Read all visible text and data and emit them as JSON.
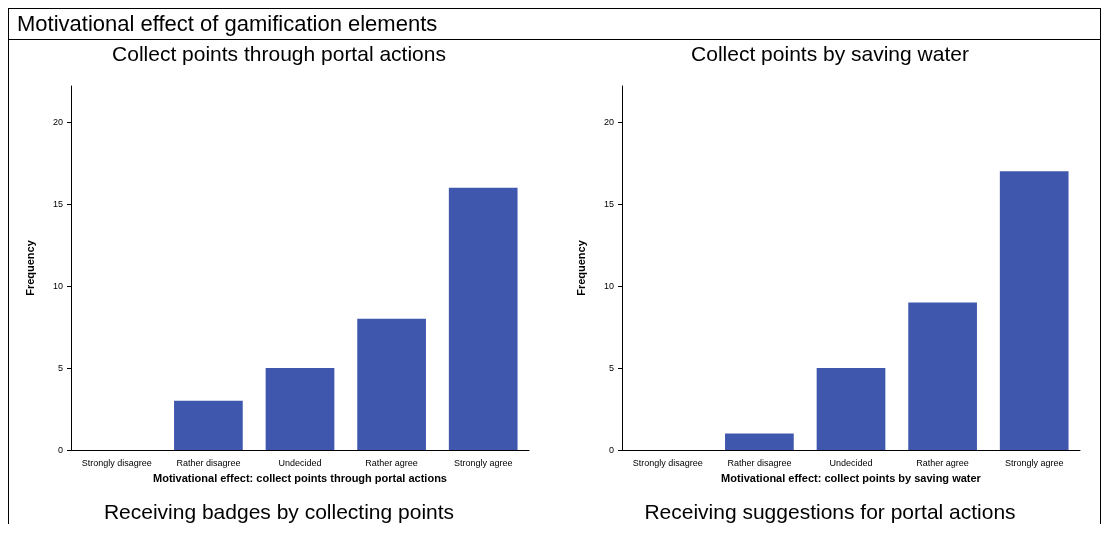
{
  "chart_data": [
    {
      "type": "bar",
      "title": "Collect points through portal actions",
      "xlabel": "Motivational effect: collect points through portal actions",
      "ylabel": "Frequency",
      "categories": [
        "Strongly disagree",
        "Rather disagree",
        "Undecided",
        "Rather agree",
        "Strongly agree"
      ],
      "values": [
        0,
        3,
        5,
        8,
        16
      ],
      "color": "#3f58ae",
      "ylim": [
        0,
        22.2
      ],
      "yticks": [
        0,
        5,
        10,
        15,
        20
      ],
      "grid": false,
      "annotations": [
        "Motivational effect of gamification elements",
        "Receiving badges by collecting points"
      ]
    },
    {
      "type": "bar",
      "title": "Collect points by saving water",
      "xlabel": "Motivational effect: collect points by saving water",
      "ylabel": "Frequency",
      "categories": [
        "Strongly disagree",
        "Rather disagree",
        "Undecided",
        "Rather agree",
        "Strongly agree"
      ],
      "values": [
        0,
        1,
        5,
        9,
        17
      ],
      "color": "#3f58ae",
      "ylim": [
        0,
        22.2
      ],
      "yticks": [
        0,
        5,
        10,
        15,
        20
      ],
      "grid": false,
      "annotations": [
        "Receiving suggestions for portal actions"
      ]
    }
  ]
}
